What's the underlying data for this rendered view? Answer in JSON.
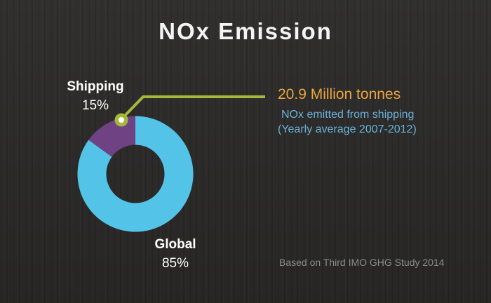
{
  "title": "NOx Emission",
  "chart_data": {
    "type": "pie",
    "subtype": "donut",
    "title": "NOx Emission",
    "unit": "percent",
    "categories": [
      "Global",
      "Shipping"
    ],
    "values": [
      85,
      15
    ],
    "slices": [
      {
        "label": "Global",
        "value": 85,
        "pct_label": "85%",
        "color": "#53c3e8"
      },
      {
        "label": "Shipping",
        "value": 15,
        "pct_label": "15%",
        "color": "#6e4283"
      }
    ],
    "start_angle_deg_from_top": 0,
    "direction": "clockwise",
    "legend_position": "labels beside slices",
    "grid": false
  },
  "annotation": {
    "headline": "20.9 Million tonnes",
    "detail_line1": "NOx emitted from shipping",
    "detail_line2": "(Yearly average 2007-2012)",
    "headline_color": "#e9a63e",
    "detail_color": "#6cb0d8",
    "callout_color": "#a6b83b",
    "callout_dot_color": "#ffffff"
  },
  "source_note": "Based on Third IMO GHG Study 2014",
  "colors": {
    "background": "#2a2928",
    "title_text": "#f4f4f4",
    "label_text": "#ffffff",
    "source_text": "#8b8b8b"
  }
}
